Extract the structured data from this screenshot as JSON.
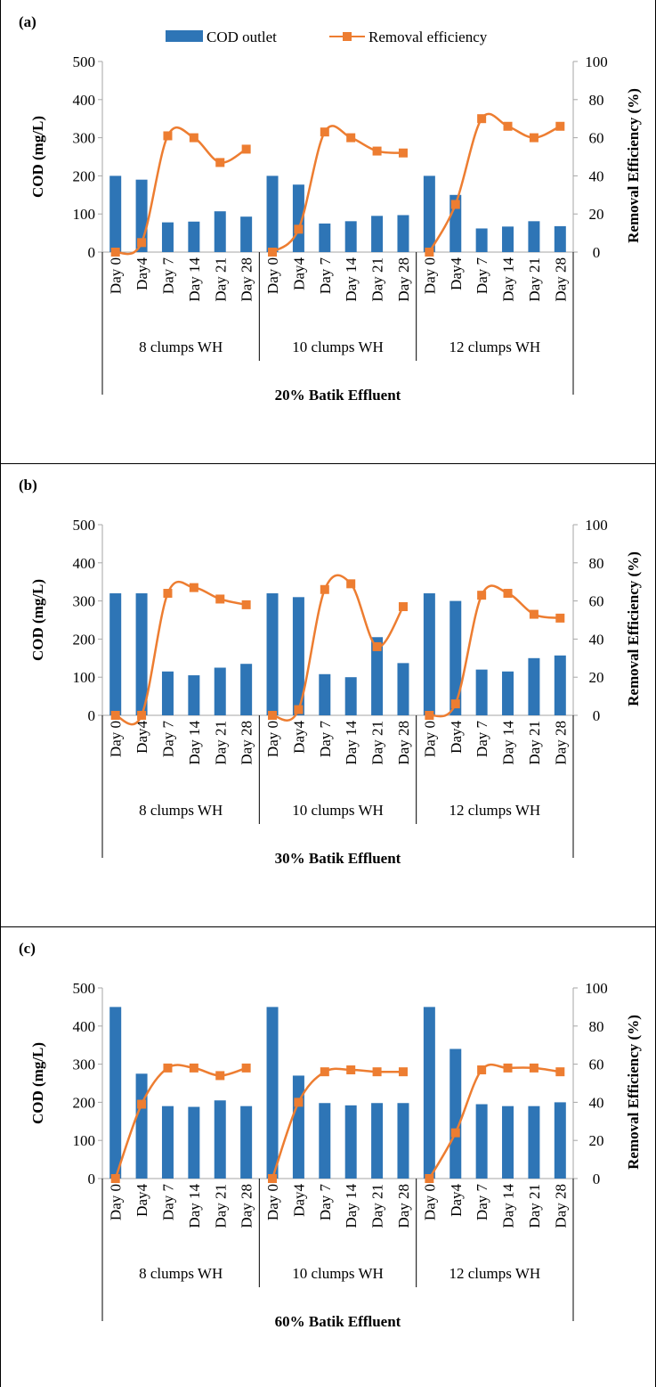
{
  "legend": {
    "bar_label": "COD outlet",
    "line_label": "Removal efficiency"
  },
  "colors": {
    "bar": "#2E75B6",
    "line": "#ED7D31",
    "axis": "#A6A6A6"
  },
  "chart_data": [
    {
      "type": "bar",
      "panel_label": "(a)",
      "title": "20% Batik Effluent",
      "ylabel": "COD (mg/L)",
      "y2label": "Removal Efficiency (%)",
      "ylim": [
        0,
        500
      ],
      "yticks": [
        "0",
        "100",
        "200",
        "300",
        "400",
        "500"
      ],
      "y2lim": [
        0,
        100
      ],
      "y2ticks": [
        "0",
        "20",
        "40",
        "60",
        "80",
        "100"
      ],
      "groups": [
        "8 clumps WH",
        "10 clumps WH",
        "12 clumps  WH"
      ],
      "categories": [
        "Day 0",
        "Day4",
        "Day 7",
        "Day 14",
        "Day 21",
        "Day 28"
      ],
      "series": [
        {
          "name": "COD outlet",
          "type": "bar",
          "values": [
            [
              200,
              190,
              78,
              80,
              107,
              93
            ],
            [
              200,
              177,
              75,
              81,
              95,
              97
            ],
            [
              200,
              150,
              62,
              67,
              81,
              68
            ]
          ]
        },
        {
          "name": "Removal efficiency",
          "type": "line",
          "axis": "right",
          "values": [
            [
              0,
              5,
              61,
              60,
              47,
              54
            ],
            [
              0,
              12,
              63,
              60,
              53,
              52
            ],
            [
              0,
              25,
              70,
              66,
              60,
              66
            ]
          ]
        }
      ]
    },
    {
      "type": "bar",
      "panel_label": "(b)",
      "title": "30% Batik Effluent",
      "ylabel": "COD (mg/L)",
      "y2label": "Removal Efficiency (%)",
      "ylim": [
        0,
        500
      ],
      "yticks": [
        "0",
        "100",
        "200",
        "300",
        "400",
        "500"
      ],
      "y2lim": [
        0,
        100
      ],
      "y2ticks": [
        "0",
        "20",
        "40",
        "60",
        "80",
        "100"
      ],
      "groups": [
        "8 clumps WH",
        "10 clumps WH",
        "12 clumps  WH"
      ],
      "categories": [
        "Day 0",
        "Day4",
        "Day 7",
        "Day 14",
        "Day 21",
        "Day 28"
      ],
      "series": [
        {
          "name": "COD outlet",
          "type": "bar",
          "values": [
            [
              320,
              320,
              115,
              105,
              125,
              135
            ],
            [
              320,
              310,
              108,
              100,
              205,
              137
            ],
            [
              320,
              300,
              120,
              115,
              150,
              157
            ]
          ]
        },
        {
          "name": "Removal efficiency",
          "type": "line",
          "axis": "right",
          "values": [
            [
              0,
              0,
              64,
              67,
              61,
              58
            ],
            [
              0,
              3,
              66,
              69,
              36,
              57
            ],
            [
              0,
              6,
              63,
              64,
              53,
              51
            ]
          ]
        }
      ]
    },
    {
      "type": "bar",
      "panel_label": "(c)",
      "title": "60% Batik Effluent",
      "ylabel": "COD (mg/L)",
      "y2label": "Removal Efficiency (%)",
      "ylim": [
        0,
        500
      ],
      "yticks": [
        "0",
        "100",
        "200",
        "300",
        "400",
        "500"
      ],
      "y2lim": [
        0,
        100
      ],
      "y2ticks": [
        "0",
        "20",
        "40",
        "60",
        "80",
        "100"
      ],
      "groups": [
        "8 clumps WH",
        "10 clumps WH",
        "12 clumps  WH"
      ],
      "categories": [
        "Day 0",
        "Day4",
        "Day 7",
        "Day 14",
        "Day 21",
        "Day 28"
      ],
      "series": [
        {
          "name": "COD outlet",
          "type": "bar",
          "values": [
            [
              450,
              275,
              190,
              188,
              205,
              190
            ],
            [
              450,
              270,
              198,
              192,
              198,
              198
            ],
            [
              450,
              340,
              195,
              190,
              190,
              200
            ]
          ]
        },
        {
          "name": "Removal efficiency",
          "type": "line",
          "axis": "right",
          "values": [
            [
              0,
              39,
              58,
              58,
              54,
              58
            ],
            [
              0,
              40,
              56,
              57,
              56,
              56
            ],
            [
              0,
              24,
              57,
              58,
              58,
              56
            ]
          ]
        }
      ]
    }
  ]
}
